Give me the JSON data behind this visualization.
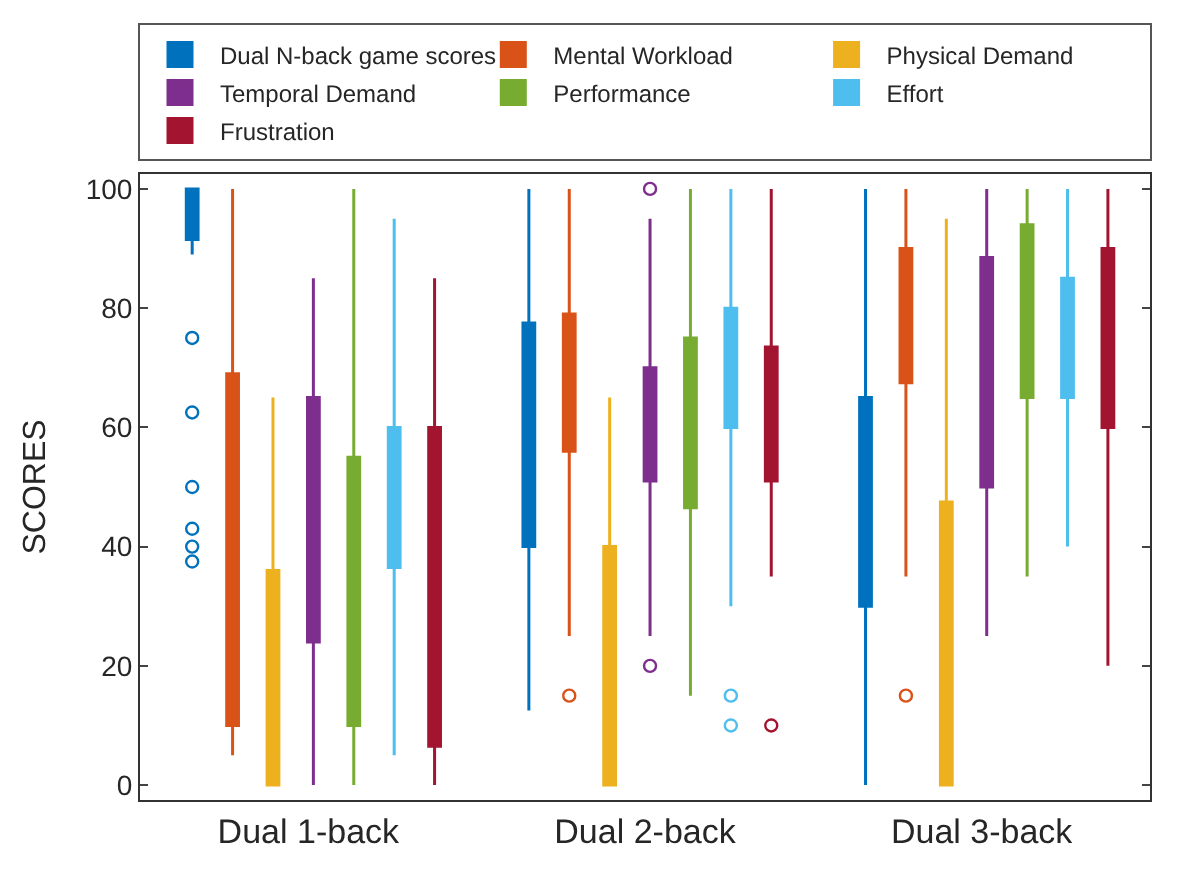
{
  "chart_data": {
    "type": "box",
    "ylabel": "SCORES",
    "categories": [
      "Dual 1-back",
      "Dual 2-back",
      "Dual 3-back"
    ],
    "ylim": [
      -2.5,
      102.5
    ],
    "yticks": [
      0,
      20,
      40,
      60,
      80,
      100
    ],
    "legend": "top",
    "series": [
      {
        "name": "Dual N-back game scores",
        "color": "#0072bd",
        "boxes": [
          {
            "low": 89,
            "q1": 91.5,
            "median": 100,
            "q3": 100,
            "high": 100,
            "outliers": [
              75,
              62.5,
              50,
              43,
              40,
              37.5
            ]
          },
          {
            "low": 12.5,
            "q1": 40,
            "median": 58,
            "q3": 77.5,
            "high": 100
          },
          {
            "low": 0,
            "q1": 30,
            "median": 43,
            "q3": 65,
            "high": 100
          }
        ]
      },
      {
        "name": "Mental Workload",
        "color": "#d95319",
        "boxes": [
          {
            "low": 5,
            "q1": 10,
            "median": 40,
            "q3": 69,
            "high": 100
          },
          {
            "low": 25,
            "q1": 56,
            "median": 70,
            "q3": 79,
            "high": 100,
            "outliers": [
              15
            ]
          },
          {
            "low": 35,
            "q1": 67.5,
            "median": 85,
            "q3": 90,
            "high": 100,
            "outliers": [
              15
            ]
          }
        ]
      },
      {
        "name": "Physical Demand",
        "color": "#edb120",
        "boxes": [
          {
            "low": 0,
            "q1": 0,
            "median": 5,
            "q3": 36,
            "high": 65
          },
          {
            "low": 0,
            "q1": 0,
            "median": 5,
            "q3": 40,
            "high": 65
          },
          {
            "low": 0,
            "q1": 0,
            "median": 5,
            "q3": 47.5,
            "high": 95
          }
        ]
      },
      {
        "name": "Temporal Demand",
        "color": "#7e2f8e",
        "boxes": [
          {
            "low": 0,
            "q1": 24,
            "median": 55,
            "q3": 65,
            "high": 85
          },
          {
            "low": 25,
            "q1": 51,
            "median": 60,
            "q3": 70,
            "high": 95,
            "outliers": [
              100,
              20
            ]
          },
          {
            "low": 25,
            "q1": 50,
            "median": 70,
            "q3": 88.5,
            "high": 100
          }
        ]
      },
      {
        "name": "Performance",
        "color": "#77ac30",
        "boxes": [
          {
            "low": 0,
            "q1": 10,
            "median": 35,
            "q3": 55,
            "high": 100
          },
          {
            "low": 15,
            "q1": 46.5,
            "median": 65,
            "q3": 75,
            "high": 100
          },
          {
            "low": 35,
            "q1": 65,
            "median": 80,
            "q3": 94,
            "high": 100
          }
        ]
      },
      {
        "name": "Effort",
        "color": "#4dbeee",
        "boxes": [
          {
            "low": 5,
            "q1": 36.5,
            "median": 55,
            "q3": 60,
            "high": 95
          },
          {
            "low": 30,
            "q1": 60,
            "median": 65,
            "q3": 80,
            "high": 100,
            "outliers": [
              15,
              10
            ]
          },
          {
            "low": 40,
            "q1": 65,
            "median": 75,
            "q3": 85,
            "high": 100
          }
        ]
      },
      {
        "name": "Frustration",
        "color": "#a2142f",
        "boxes": [
          {
            "low": 0,
            "q1": 6.5,
            "median": 50,
            "q3": 60,
            "high": 85
          },
          {
            "low": 35,
            "q1": 51,
            "median": 65,
            "q3": 73.5,
            "high": 100,
            "outliers": [
              10
            ]
          },
          {
            "low": 20,
            "q1": 60,
            "median": 70,
            "q3": 90,
            "high": 100
          }
        ]
      }
    ]
  }
}
